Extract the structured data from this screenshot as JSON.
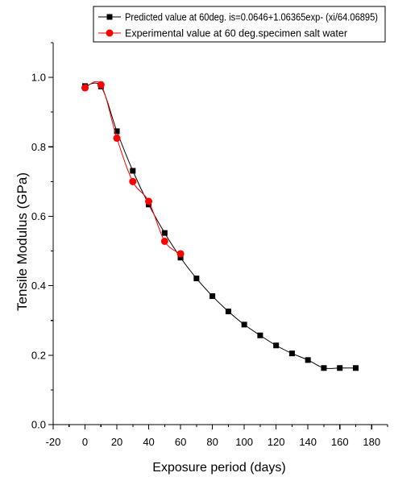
{
  "chart_data": {
    "type": "line",
    "xlabel": "Exposure period (days)",
    "ylabel": "Tensile Modulus (GPa)",
    "xlim": [
      -20,
      190
    ],
    "ylim": [
      0,
      1.1
    ],
    "x_tick_labels": [
      "-20",
      "0",
      "20",
      "40",
      "60",
      "80",
      "100",
      "120",
      "140",
      "160",
      "180"
    ],
    "y_tick_labels": [
      "0.0",
      "0.2",
      "0.4",
      "0.6",
      "0.8",
      "1.0"
    ],
    "grid": false,
    "legend_position": "top",
    "series": [
      {
        "name": "Predicted value at 60deg. is=0.0646+1.06365exp- (xi/64.06895)",
        "color": "#000000",
        "marker": "square",
        "x": [
          0,
          10,
          20,
          30,
          40,
          50,
          60,
          70,
          80,
          90,
          100,
          110,
          120,
          130,
          140,
          150,
          160,
          170
        ],
        "y": [
          0.975,
          0.974,
          0.845,
          0.731,
          0.634,
          0.552,
          0.481,
          0.421,
          0.37,
          0.326,
          0.288,
          0.257,
          0.228,
          0.205,
          0.186,
          0.163,
          0.163,
          0.163
        ]
      },
      {
        "name": "Experimental value at 60 deg.specimen salt water",
        "color": "#ff0000",
        "marker": "circle",
        "x": [
          0,
          10,
          20,
          30,
          40,
          50,
          60
        ],
        "y": [
          0.97,
          0.979,
          0.825,
          0.7,
          0.643,
          0.528,
          0.492
        ]
      }
    ]
  }
}
